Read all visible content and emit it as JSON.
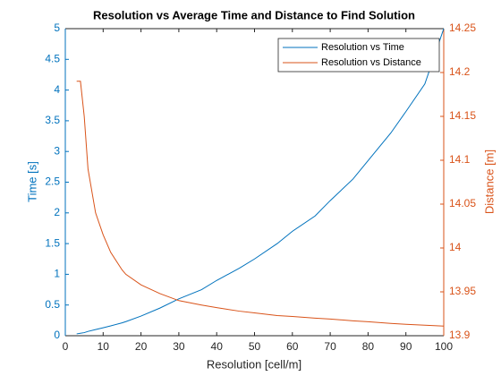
{
  "chart_data": {
    "type": "line",
    "title": "Resolution vs Average Time and Distance to Find Solution",
    "xlabel": "Resolution [cell/m]",
    "ylabel": "Time [s]",
    "y2label": "Distance [m]",
    "x": [
      3,
      4,
      5,
      6,
      8,
      10,
      12,
      15,
      16,
      20,
      25,
      30,
      36,
      40,
      46,
      50,
      56,
      60,
      66,
      70,
      76,
      80,
      86,
      90,
      95,
      100
    ],
    "series": [
      {
        "name": "Resolution vs Time",
        "color": "#0072BD",
        "values": [
          0.03,
          0.04,
          0.05,
          0.07,
          0.1,
          0.13,
          0.16,
          0.21,
          0.23,
          0.32,
          0.45,
          0.6,
          0.75,
          0.9,
          1.1,
          1.25,
          1.5,
          1.7,
          1.95,
          2.2,
          2.55,
          2.85,
          3.3,
          3.65,
          4.1,
          5.0
        ]
      },
      {
        "name": "Resolution vs Distance",
        "color": "#D95319",
        "axis": "y2",
        "values": [
          14.19,
          14.19,
          14.15,
          14.09,
          14.04,
          14.015,
          13.995,
          13.975,
          13.97,
          13.958,
          13.948,
          13.94,
          13.935,
          13.932,
          13.928,
          13.926,
          13.923,
          13.922,
          13.92,
          13.919,
          13.917,
          13.916,
          13.914,
          13.913,
          13.912,
          13.911
        ]
      }
    ],
    "xlim": [
      0,
      100
    ],
    "xticks": [
      0,
      10,
      20,
      30,
      40,
      50,
      60,
      70,
      80,
      90,
      100
    ],
    "ylim": [
      0,
      5
    ],
    "yticks": [
      0,
      0.5,
      1,
      1.5,
      2,
      2.5,
      3,
      3.5,
      4,
      4.5,
      5
    ],
    "y2lim": [
      13.9,
      14.25
    ],
    "y2ticks": [
      13.9,
      13.95,
      14,
      14.05,
      14.1,
      14.15,
      14.2,
      14.25
    ],
    "legend": "upper right"
  }
}
